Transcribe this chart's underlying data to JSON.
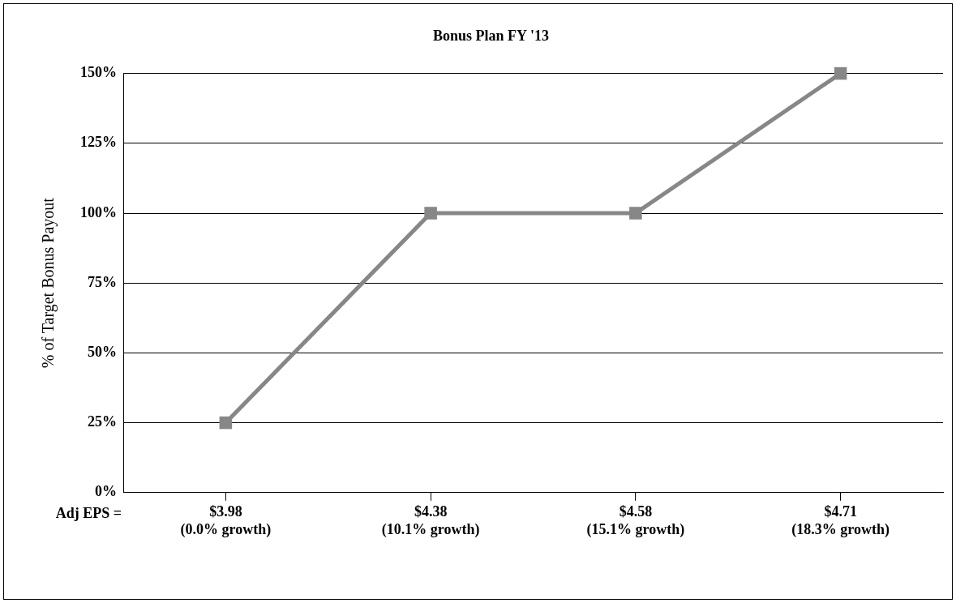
{
  "chart_data": {
    "type": "line",
    "title": "Bonus Plan FY '13",
    "xlabel": "Adj EPS =",
    "ylabel": "% of Target Bonus Payout",
    "categories": [
      "$3.98\n(0.0% growth)",
      "$4.38\n(10.1% growth)",
      "$4.58\n(15.1% growth)",
      "$4.71\n(18.3% growth)"
    ],
    "series": [
      {
        "color": "#878787",
        "values": [
          25,
          100,
          100,
          150
        ]
      }
    ],
    "ylim": [
      0,
      150
    ],
    "yticks": [
      {
        "value": 0,
        "label": "0%"
      },
      {
        "value": 25,
        "label": "25%"
      },
      {
        "value": 50,
        "label": "50%"
      },
      {
        "value": 75,
        "label": "75%"
      },
      {
        "value": 100,
        "label": "100%"
      },
      {
        "value": 125,
        "label": "125%"
      },
      {
        "value": 150,
        "label": "150%"
      }
    ],
    "grid": "y",
    "legend": false,
    "marker": "square",
    "line_style": "solid"
  }
}
